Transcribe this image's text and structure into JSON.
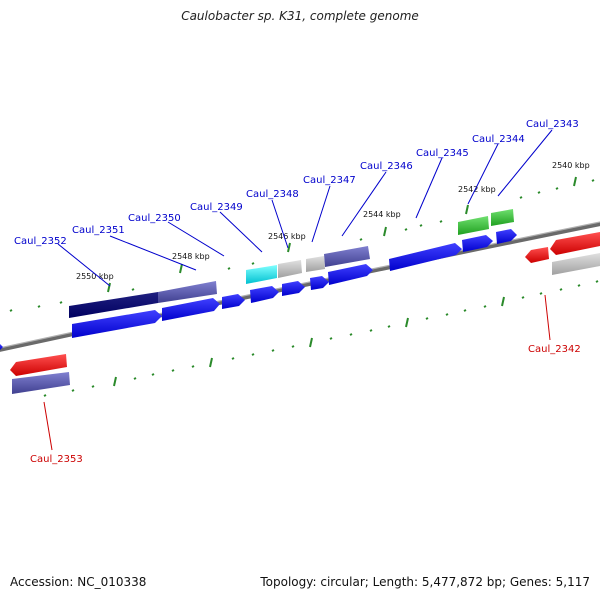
{
  "title": "Caulobacter sp. K31, complete genome",
  "accession": "Accession: NC_010338",
  "summary": "Topology: circular; Length: 5,477,872 bp; Genes: 5,117",
  "colors": {
    "forward_label": "#0000cc",
    "reverse_label": "#cc0000",
    "backbone": "#888888",
    "tick": "#2a8a2a"
  },
  "scale_labels": [
    "2550 kbp",
    "2548 kbp",
    "2546 kbp",
    "2544 kbp",
    "2542 kbp",
    "2540 kbp"
  ],
  "forward_genes": [
    "Caul_2352",
    "Caul_2351",
    "Caul_2350",
    "Caul_2349",
    "Caul_2348",
    "Caul_2347",
    "Caul_2346",
    "Caul_2345",
    "Caul_2344",
    "Caul_2343"
  ],
  "reverse_genes": [
    "Caul_2353",
    "Caul_2342"
  ]
}
